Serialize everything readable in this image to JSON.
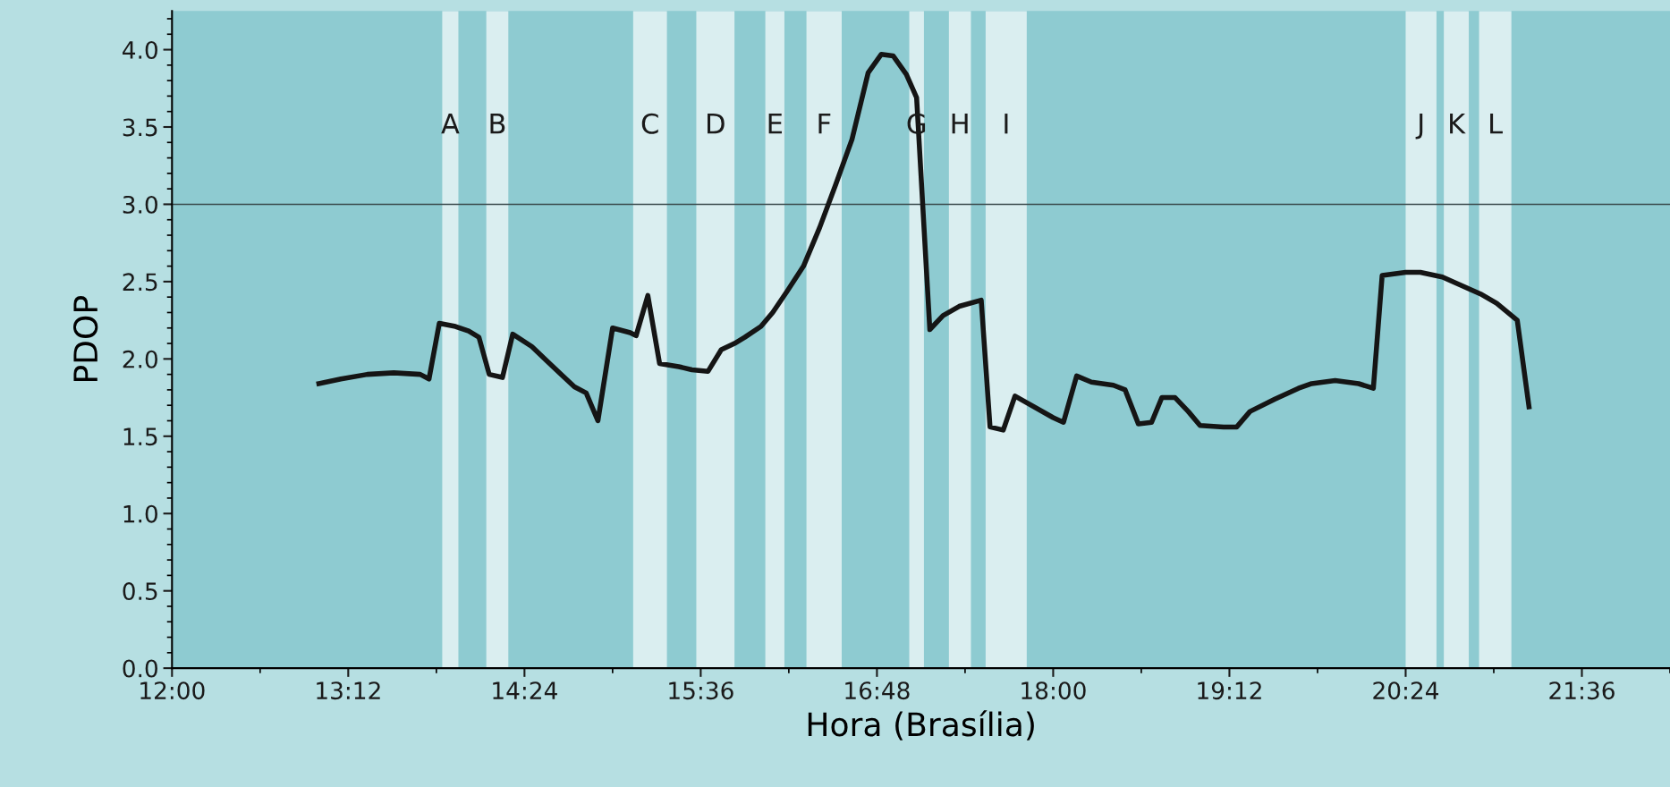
{
  "chart_data": {
    "type": "line",
    "xlabel": "Hora (Brasília)",
    "ylabel": "PDOP",
    "x": [
      13.0,
      13.15,
      13.33,
      13.51,
      13.69,
      13.75,
      13.82,
      13.93,
      14.02,
      14.09,
      14.16,
      14.25,
      14.32,
      14.45,
      14.56,
      14.66,
      14.74,
      14.82,
      14.9,
      15.0,
      15.12,
      15.16,
      15.24,
      15.32,
      15.45,
      15.54,
      15.65,
      15.74,
      15.83,
      15.9,
      16.01,
      16.09,
      16.19,
      16.3,
      16.41,
      16.52,
      16.63,
      16.74,
      16.83,
      16.91,
      17.0,
      17.07,
      17.16,
      17.25,
      17.36,
      17.51,
      17.57,
      17.66,
      17.74,
      18.0,
      18.07,
      18.16,
      18.26,
      18.41,
      18.49,
      18.58,
      18.67,
      18.74,
      18.83,
      18.92,
      19.0,
      19.16,
      19.25,
      19.34,
      19.51,
      19.67,
      19.76,
      19.92,
      20.08,
      20.18,
      20.24,
      20.4,
      20.5,
      20.65,
      20.91,
      21.02,
      21.16,
      21.24
    ],
    "series": [
      {
        "color": "#151515",
        "values": [
          1.84,
          1.87,
          1.9,
          1.91,
          1.9,
          1.87,
          2.23,
          2.21,
          2.18,
          2.14,
          1.9,
          1.88,
          2.16,
          2.08,
          1.98,
          1.89,
          1.82,
          1.78,
          1.6,
          2.2,
          2.17,
          2.15,
          2.41,
          1.97,
          1.95,
          1.93,
          1.92,
          2.06,
          2.1,
          2.14,
          2.21,
          2.3,
          2.44,
          2.6,
          2.85,
          3.13,
          3.42,
          3.85,
          3.97,
          3.96,
          3.84,
          3.69,
          2.19,
          2.28,
          2.34,
          2.38,
          1.56,
          1.54,
          1.76,
          1.62,
          1.59,
          1.89,
          1.85,
          1.83,
          1.8,
          1.58,
          1.59,
          1.75,
          1.75,
          1.66,
          1.57,
          1.56,
          1.56,
          1.66,
          1.74,
          1.81,
          1.84,
          1.86,
          1.84,
          1.81,
          2.54,
          2.56,
          2.56,
          2.53,
          2.42,
          2.36,
          2.25,
          1.69
        ]
      }
    ],
    "xlim": [
      12,
      22.2
    ],
    "xticks": [
      {
        "value": 12,
        "label": "12:00"
      },
      {
        "value": 13.2,
        "label": "13:12"
      },
      {
        "value": 14.4,
        "label": "14:24"
      },
      {
        "value": 15.6,
        "label": "15:36"
      },
      {
        "value": 16.8,
        "label": "16:48"
      },
      {
        "value": 18,
        "label": "18:00"
      },
      {
        "value": 19.2,
        "label": "19:12"
      },
      {
        "value": 20.4,
        "label": "20:24"
      },
      {
        "value": 21.6,
        "label": "21:36"
      }
    ],
    "ylim": [
      0,
      4.25
    ],
    "yticks": [
      {
        "value": 0,
        "label": "0.0"
      },
      {
        "value": 0.5,
        "label": "0.5"
      },
      {
        "value": 1,
        "label": "1.0"
      },
      {
        "value": 1.5,
        "label": "1.5"
      },
      {
        "value": 2,
        "label": "2.0"
      },
      {
        "value": 2.5,
        "label": "2.5"
      },
      {
        "value": 3,
        "label": "3.0"
      },
      {
        "value": 3.5,
        "label": "3.5"
      },
      {
        "value": 4,
        "label": "4.0"
      }
    ],
    "ref_lines": [
      {
        "axis": "y",
        "value": 3,
        "color": "#3a4a4c",
        "line_style": "solid"
      }
    ],
    "bands": [
      {
        "axis": "x",
        "from": 13.84,
        "to": 13.95,
        "label": "A",
        "color": "#daeef0"
      },
      {
        "axis": "x",
        "from": 14.14,
        "to": 14.29,
        "label": "B",
        "color": "#daeef0"
      },
      {
        "axis": "x",
        "from": 15.14,
        "to": 15.37,
        "label": "C",
        "color": "#daeef0"
      },
      {
        "axis": "x",
        "from": 15.57,
        "to": 15.83,
        "label": "D",
        "color": "#daeef0"
      },
      {
        "axis": "x",
        "from": 16.04,
        "to": 16.17,
        "label": "E",
        "color": "#daeef0"
      },
      {
        "axis": "x",
        "from": 16.32,
        "to": 16.56,
        "label": "F",
        "color": "#daeef0"
      },
      {
        "axis": "x",
        "from": 17.02,
        "to": 17.12,
        "label": "G",
        "color": "#daeef0"
      },
      {
        "axis": "x",
        "from": 17.29,
        "to": 17.44,
        "label": "H",
        "color": "#daeef0"
      },
      {
        "axis": "x",
        "from": 17.54,
        "to": 17.82,
        "label": "I",
        "color": "#daeef0"
      },
      {
        "axis": "x",
        "from": 20.4,
        "to": 20.61,
        "label": "J",
        "color": "#daeef0"
      },
      {
        "axis": "x",
        "from": 20.66,
        "to": 20.83,
        "label": "K",
        "color": "#daeef0"
      },
      {
        "axis": "x",
        "from": 20.9,
        "to": 21.12,
        "label": "L",
        "color": "#daeef0"
      }
    ],
    "grid": false,
    "legend": false,
    "marker": "none",
    "line_style": "solid"
  }
}
